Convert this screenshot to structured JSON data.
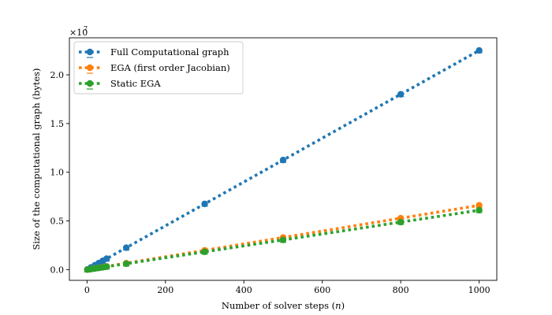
{
  "chart_data": {
    "type": "line",
    "xlabel": "Number of solver steps (n)",
    "ylabel": "Size of the computational graph (bytes)",
    "y_multiplier_label": "×10^7",
    "y_multiplier": 10000000,
    "xlim": [
      -45,
      1045
    ],
    "ylim": [
      -1100000,
      23800000
    ],
    "x_ticks": [
      0,
      200,
      400,
      600,
      800,
      1000
    ],
    "y_ticks": [
      0,
      5000000,
      10000000,
      15000000,
      20000000
    ],
    "x_tick_labels": [
      "0",
      "200",
      "400",
      "600",
      "800",
      "1000"
    ],
    "y_tick_labels": [
      "0.0",
      "0.5",
      "1.0",
      "1.5",
      "2.0"
    ],
    "grid": false,
    "legend_position": "top-left",
    "x": [
      1,
      10,
      20,
      30,
      40,
      50,
      100,
      300,
      500,
      800,
      1000
    ],
    "series": [
      {
        "name": "Full Computational graph",
        "color": "#1f77b4",
        "marker": "circle",
        "values": [
          22500,
          225000,
          450000,
          675000,
          900000,
          1125000,
          2250000,
          6750000,
          11250000,
          18000000,
          22500000
        ]
      },
      {
        "name": "EGA (first order Jacobian)",
        "color": "#ff7f0e",
        "marker": "circle",
        "values": [
          6600,
          66000,
          132000,
          198000,
          264000,
          330000,
          660000,
          1980000,
          3300000,
          5280000,
          6600000
        ]
      },
      {
        "name": "Static EGA",
        "color": "#2ca02c",
        "marker": "circle",
        "values": [
          6100,
          61000,
          122000,
          183000,
          244000,
          305000,
          610000,
          1830000,
          3050000,
          4880000,
          6100000
        ]
      }
    ]
  }
}
